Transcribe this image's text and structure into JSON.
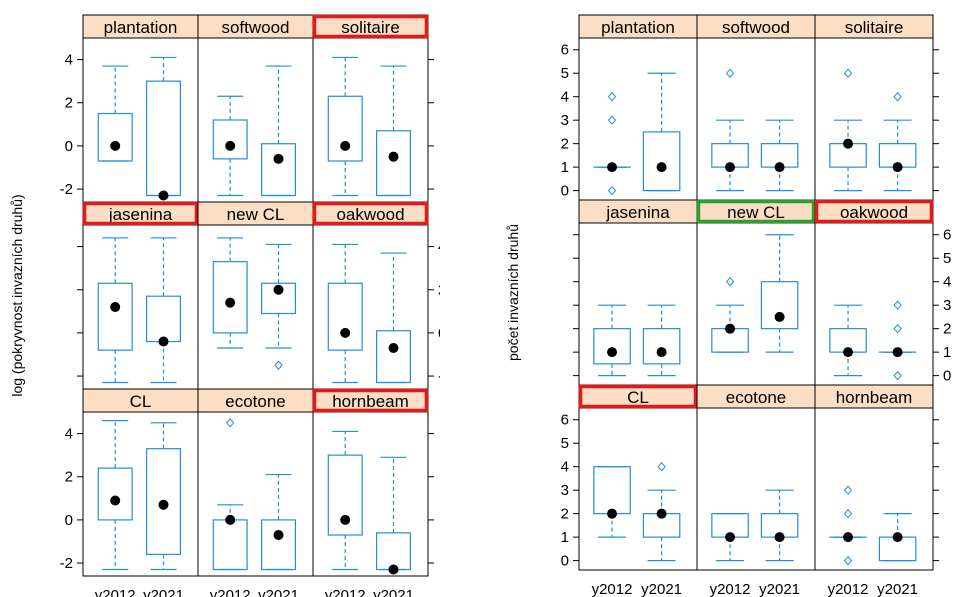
{
  "chart_data": [
    {
      "type": "box",
      "ylabel": "log (pokryvnost invazních druhů)",
      "xlabel": "",
      "ylim": [
        -2.6,
        5.0
      ],
      "yticks": [
        -2,
        0,
        2,
        4
      ],
      "categories": [
        "y2012",
        "y2021"
      ],
      "highlight_colors": {
        "red": "#e31a1c"
      },
      "panels": [
        {
          "name": "plantation",
          "highlight": null,
          "boxes": [
            {
              "wlo": -0.7,
              "q1": -0.7,
              "med": 0.0,
              "q3": 1.5,
              "whi": 3.7,
              "out": []
            },
            {
              "wlo": -2.3,
              "q1": -2.3,
              "med": -2.3,
              "q3": 3.0,
              "whi": 4.1,
              "out": []
            }
          ]
        },
        {
          "name": "softwood",
          "highlight": null,
          "boxes": [
            {
              "wlo": -2.3,
              "q1": -0.6,
              "med": 0.0,
              "q3": 1.2,
              "whi": 2.3,
              "out": []
            },
            {
              "wlo": -2.3,
              "q1": -2.3,
              "med": -0.6,
              "q3": 0.1,
              "whi": 3.7,
              "out": []
            }
          ]
        },
        {
          "name": "solitaire",
          "highlight": "red",
          "boxes": [
            {
              "wlo": -2.3,
              "q1": -0.7,
              "med": 0.0,
              "q3": 2.3,
              "whi": 4.1,
              "out": []
            },
            {
              "wlo": -2.3,
              "q1": -2.3,
              "med": -0.5,
              "q3": 0.7,
              "whi": 3.7,
              "out": []
            }
          ]
        },
        {
          "name": "jasenina",
          "highlight": "red",
          "boxes": [
            {
              "wlo": -2.3,
              "q1": -0.8,
              "med": 1.2,
              "q3": 2.3,
              "whi": 4.4,
              "out": []
            },
            {
              "wlo": -2.3,
              "q1": -0.4,
              "med": -0.4,
              "q3": 1.7,
              "whi": 4.4,
              "out": []
            }
          ]
        },
        {
          "name": "new  CL",
          "highlight": null,
          "boxes": [
            {
              "wlo": -0.7,
              "q1": 0.0,
              "med": 1.4,
              "q3": 3.3,
              "whi": 4.4,
              "out": []
            },
            {
              "wlo": -0.7,
              "q1": 0.9,
              "med": 2.0,
              "q3": 2.3,
              "whi": 4.1,
              "out": [
                -1.5
              ]
            }
          ]
        },
        {
          "name": "oakwood",
          "highlight": "red",
          "boxes": [
            {
              "wlo": -2.3,
              "q1": -0.8,
              "med": 0.0,
              "q3": 2.3,
              "whi": 4.1,
              "out": []
            },
            {
              "wlo": -2.3,
              "q1": -2.3,
              "med": -0.7,
              "q3": 0.1,
              "whi": 3.7,
              "out": []
            }
          ]
        },
        {
          "name": "CL",
          "highlight": null,
          "boxes": [
            {
              "wlo": -2.3,
              "q1": 0.0,
              "med": 0.9,
              "q3": 2.4,
              "whi": 4.6,
              "out": []
            },
            {
              "wlo": -2.3,
              "q1": -1.6,
              "med": 0.7,
              "q3": 3.3,
              "whi": 4.5,
              "out": []
            }
          ]
        },
        {
          "name": "ecotone",
          "highlight": null,
          "boxes": [
            {
              "wlo": -2.3,
              "q1": -2.3,
              "med": 0.0,
              "q3": 0.0,
              "whi": 0.7,
              "out": [
                4.5
              ]
            },
            {
              "wlo": -2.3,
              "q1": -2.3,
              "med": -0.7,
              "q3": 0.0,
              "whi": 2.1,
              "out": []
            }
          ]
        },
        {
          "name": "hornbeam",
          "highlight": "red",
          "boxes": [
            {
              "wlo": -2.3,
              "q1": -0.7,
              "med": 0.0,
              "q3": 3.0,
              "whi": 4.1,
              "out": []
            },
            {
              "wlo": -2.3,
              "q1": -2.3,
              "med": -2.3,
              "q3": -0.6,
              "whi": 2.9,
              "out": []
            }
          ]
        }
      ]
    },
    {
      "type": "box",
      "ylabel": "počet invazních druhů",
      "xlabel": "",
      "ylim": [
        -0.4,
        6.5
      ],
      "yticks": [
        0,
        1,
        2,
        3,
        4,
        5,
        6
      ],
      "categories": [
        "y2012",
        "y2021"
      ],
      "highlight_colors": {
        "red": "#e31a1c",
        "green": "#2ca02c"
      },
      "panels": [
        {
          "name": "plantation",
          "highlight": null,
          "boxes": [
            {
              "wlo": 1,
              "q1": 1,
              "med": 1,
              "q3": 1,
              "whi": 1,
              "out": [
                0,
                3,
                4
              ]
            },
            {
              "wlo": 0,
              "q1": 0,
              "med": 1,
              "q3": 2.5,
              "whi": 5,
              "out": []
            }
          ]
        },
        {
          "name": "softwood",
          "highlight": null,
          "boxes": [
            {
              "wlo": 0,
              "q1": 1,
              "med": 1,
              "q3": 2,
              "whi": 3,
              "out": [
                5
              ]
            },
            {
              "wlo": 0,
              "q1": 1,
              "med": 1,
              "q3": 2,
              "whi": 3,
              "out": []
            }
          ]
        },
        {
          "name": "solitaire",
          "highlight": null,
          "boxes": [
            {
              "wlo": 0,
              "q1": 1,
              "med": 2,
              "q3": 2,
              "whi": 3,
              "out": [
                5
              ]
            },
            {
              "wlo": 0,
              "q1": 1,
              "med": 1,
              "q3": 2,
              "whi": 3,
              "out": [
                4
              ]
            }
          ]
        },
        {
          "name": "jasenina",
          "highlight": null,
          "boxes": [
            {
              "wlo": 0,
              "q1": 0.5,
              "med": 1,
              "q3": 2,
              "whi": 3,
              "out": []
            },
            {
              "wlo": 0,
              "q1": 0.5,
              "med": 1,
              "q3": 2,
              "whi": 3,
              "out": []
            }
          ]
        },
        {
          "name": "new  CL",
          "highlight": "green",
          "boxes": [
            {
              "wlo": 1,
              "q1": 1,
              "med": 2,
              "q3": 2,
              "whi": 3,
              "out": [
                4
              ]
            },
            {
              "wlo": 1,
              "q1": 2,
              "med": 2.5,
              "q3": 4,
              "whi": 6,
              "out": []
            }
          ]
        },
        {
          "name": "oakwood",
          "highlight": "red",
          "boxes": [
            {
              "wlo": 0,
              "q1": 1,
              "med": 1,
              "q3": 2,
              "whi": 3,
              "out": []
            },
            {
              "wlo": 1,
              "q1": 1,
              "med": 1,
              "q3": 1,
              "whi": 1,
              "out": [
                0,
                2,
                3
              ]
            }
          ]
        },
        {
          "name": "CL",
          "highlight": "red",
          "boxes": [
            {
              "wlo": 1,
              "q1": 2,
              "med": 2,
              "q3": 4,
              "whi": 4,
              "out": []
            },
            {
              "wlo": 0,
              "q1": 1,
              "med": 2,
              "q3": 2,
              "whi": 3,
              "out": [
                4
              ]
            }
          ]
        },
        {
          "name": "ecotone",
          "highlight": null,
          "boxes": [
            {
              "wlo": 0,
              "q1": 1,
              "med": 1,
              "q3": 2,
              "whi": 2,
              "out": []
            },
            {
              "wlo": 0,
              "q1": 1,
              "med": 1,
              "q3": 2,
              "whi": 3,
              "out": []
            }
          ]
        },
        {
          "name": "hornbeam",
          "highlight": null,
          "boxes": [
            {
              "wlo": 1,
              "q1": 1,
              "med": 1,
              "q3": 1,
              "whi": 1,
              "out": [
                0,
                2,
                3
              ]
            },
            {
              "wlo": 0,
              "q1": 0,
              "med": 1,
              "q3": 1,
              "whi": 2,
              "out": []
            }
          ]
        }
      ]
    }
  ]
}
